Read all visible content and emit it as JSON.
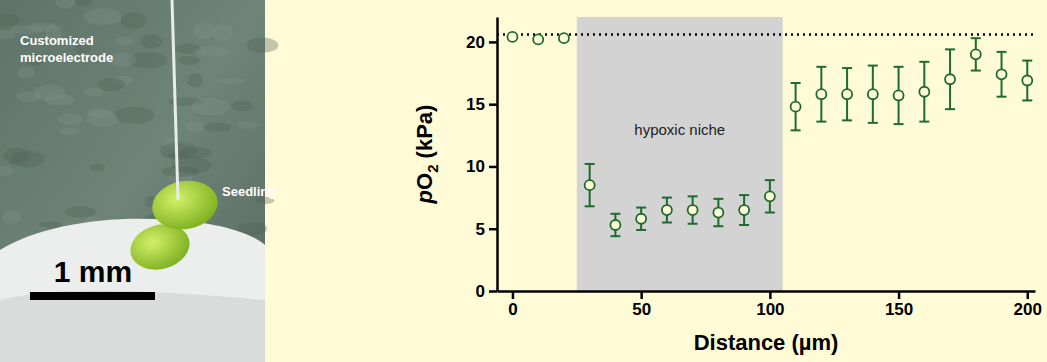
{
  "chart_data": {
    "type": "scatter",
    "x_label": "Distance (µm)",
    "y_label": "pO2 (kPa)",
    "x": [
      0,
      10,
      20,
      30,
      40,
      50,
      60,
      70,
      80,
      90,
      100,
      110,
      120,
      130,
      140,
      150,
      160,
      170,
      180,
      190,
      200
    ],
    "values": [
      20.4,
      20.2,
      20.3,
      8.5,
      5.3,
      5.8,
      6.5,
      6.5,
      6.3,
      6.5,
      7.6,
      14.8,
      15.8,
      15.8,
      15.8,
      15.7,
      16.0,
      17.0,
      19.0,
      17.4,
      16.9
    ],
    "errors": [
      0.1,
      0.1,
      0.1,
      1.7,
      0.9,
      0.9,
      1.0,
      1.1,
      1.1,
      1.2,
      1.3,
      1.9,
      2.2,
      2.1,
      2.3,
      2.3,
      2.4,
      2.4,
      1.3,
      1.8,
      1.6
    ],
    "color": "#1d6b2f",
    "marker": "open-circle",
    "xlim": [
      -6,
      203
    ],
    "xticks": [
      0,
      50,
      100,
      150,
      200
    ],
    "ylim": [
      0,
      22
    ],
    "yticks": [
      0,
      5,
      10,
      15,
      20
    ],
    "reference_line": {
      "y": 20.6
    },
    "shaded_region": {
      "x": [
        25,
        105
      ],
      "label": "hypoxic niche"
    }
  },
  "image_panel": {
    "electrode_label": [
      "Customized",
      "microelectrode"
    ],
    "seedling_label": "Seedling",
    "scale_bar": "1 mm"
  }
}
